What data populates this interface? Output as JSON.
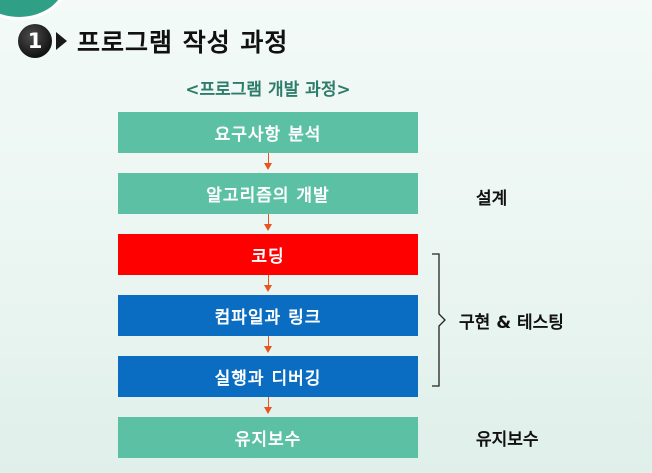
{
  "heading": {
    "number": "1",
    "title": "프로그램 작성 과정"
  },
  "subtitle": "<프로그램 개발 과정>",
  "steps": [
    {
      "label": "요구사항 분석"
    },
    {
      "label": "알고리즘의 개발"
    },
    {
      "label": "코딩"
    },
    {
      "label": "컴파일과 링크"
    },
    {
      "label": "실행과 디버깅"
    },
    {
      "label": "유지보수"
    }
  ],
  "side_labels": {
    "design": "설계",
    "implementation": "구현 & 테스팅",
    "maintenance": "유지보수"
  },
  "colors": {
    "teal": "#5cc0a5",
    "red": "#ff0000",
    "blue": "#0a6dc2",
    "arrow": "#e8541e",
    "subtitle": "#2e7d6b"
  }
}
